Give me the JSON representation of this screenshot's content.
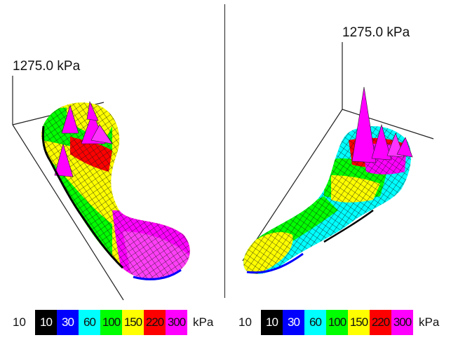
{
  "chart_data": [
    {
      "type": "heatmap",
      "z_max_label": "1275.0 kPa",
      "legend": {
        "min_label": "10",
        "bins": [
          {
            "label": "10",
            "color": "#000000",
            "text_color": "#ffffff"
          },
          {
            "label": "30",
            "color": "#0000ff",
            "text_color": "#ffffff"
          },
          {
            "label": "60",
            "color": "#00ffff",
            "text_color": "#111111"
          },
          {
            "label": "100",
            "color": "#00ff00",
            "text_color": "#111111"
          },
          {
            "label": "150",
            "color": "#ffff00",
            "text_color": "#111111"
          },
          {
            "label": "220",
            "color": "#ff0000",
            "text_color": "#111111"
          },
          {
            "label": "300",
            "color": "#ff00ff",
            "text_color": "#111111"
          }
        ],
        "unit": "kPa"
      }
    },
    {
      "type": "heatmap",
      "z_max_label": "1275.0 kPa",
      "legend": {
        "min_label": "10",
        "bins": [
          {
            "label": "10",
            "color": "#000000",
            "text_color": "#ffffff"
          },
          {
            "label": "30",
            "color": "#0000ff",
            "text_color": "#ffffff"
          },
          {
            "label": "60",
            "color": "#00ffff",
            "text_color": "#111111"
          },
          {
            "label": "100",
            "color": "#00ff00",
            "text_color": "#111111"
          },
          {
            "label": "150",
            "color": "#ffff00",
            "text_color": "#111111"
          },
          {
            "label": "220",
            "color": "#ff0000",
            "text_color": "#111111"
          },
          {
            "label": "300",
            "color": "#ff00ff",
            "text_color": "#111111"
          }
        ],
        "unit": "kPa"
      }
    }
  ]
}
